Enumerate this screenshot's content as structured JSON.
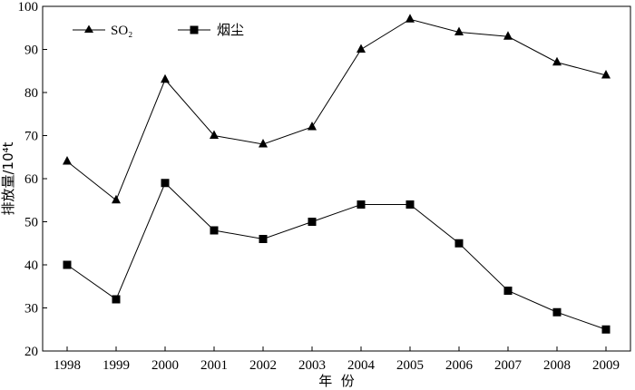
{
  "chart_data": {
    "type": "line",
    "categories": [
      "1998",
      "1999",
      "2000",
      "2001",
      "2002",
      "2003",
      "2004",
      "2005",
      "2006",
      "2007",
      "2008",
      "2009"
    ],
    "series": [
      {
        "name": "SO₂",
        "marker": "triangle",
        "values": [
          64,
          55,
          83,
          70,
          68,
          72,
          90,
          97,
          94,
          93,
          87,
          84
        ]
      },
      {
        "name": "烟尘",
        "marker": "square",
        "values": [
          40,
          32,
          59,
          48,
          46,
          50,
          54,
          54,
          45,
          34,
          29,
          25
        ]
      }
    ],
    "xlabel": "年  份",
    "ylabel": "排放量/10⁴t",
    "ylim": [
      20,
      100
    ],
    "yticks": [
      20,
      30,
      40,
      50,
      60,
      70,
      80,
      90,
      100
    ],
    "grid": false,
    "legend_position": "top-left",
    "colors": {
      "line": "#000000",
      "marker": "#000000"
    }
  }
}
